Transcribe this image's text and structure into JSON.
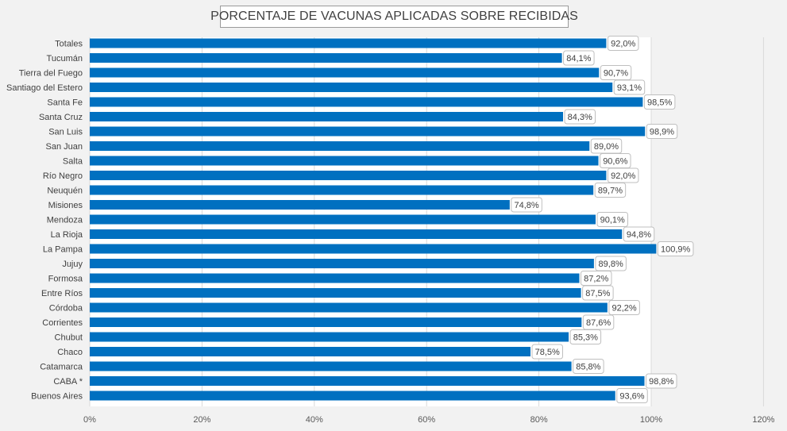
{
  "chart_data": {
    "type": "bar",
    "orientation": "horizontal",
    "title": "PORCENTAJE DE VACUNAS APLICADAS SOBRE RECIBIDAS",
    "xlabel": "",
    "ylabel": "",
    "xlim": [
      0,
      120
    ],
    "x_ticks": [
      "0%",
      "20%",
      "40%",
      "60%",
      "80%",
      "100%",
      "120%"
    ],
    "grid": true,
    "bar_color": "#0070c0",
    "plot_background_left": "#ffffff",
    "plot_background_right": "#f2f2f2",
    "categories": [
      "Totales",
      "Tucumán",
      "Tierra del Fuego",
      "Santiago del Estero",
      "Santa Fe",
      "Santa Cruz",
      "San Luis",
      "San Juan",
      "Salta",
      "Río Negro",
      "Neuquén",
      "Misiones",
      "Mendoza",
      "La Rioja",
      "La Pampa",
      "Jujuy",
      "Formosa",
      "Entre Ríos",
      "Córdoba",
      "Corrientes",
      "Chubut",
      "Chaco",
      "Catamarca",
      "CABA *",
      "Buenos Aires"
    ],
    "values": [
      92.0,
      84.1,
      90.7,
      93.1,
      98.5,
      84.3,
      98.9,
      89.0,
      90.6,
      92.0,
      89.7,
      74.8,
      90.1,
      94.8,
      100.9,
      89.8,
      87.2,
      87.5,
      92.2,
      87.6,
      85.3,
      78.5,
      85.8,
      98.8,
      93.6
    ],
    "data_labels": [
      "92,0%",
      "84,1%",
      "90,7%",
      "93,1%",
      "98,5%",
      "84,3%",
      "98,9%",
      "89,0%",
      "90,6%",
      "92,0%",
      "89,7%",
      "74,8%",
      "90,1%",
      "94,8%",
      "100,9%",
      "89,8%",
      "87,2%",
      "87,5%",
      "92,2%",
      "87,6%",
      "85,3%",
      "78,5%",
      "85,8%",
      "98,8%",
      "93,6%"
    ]
  }
}
